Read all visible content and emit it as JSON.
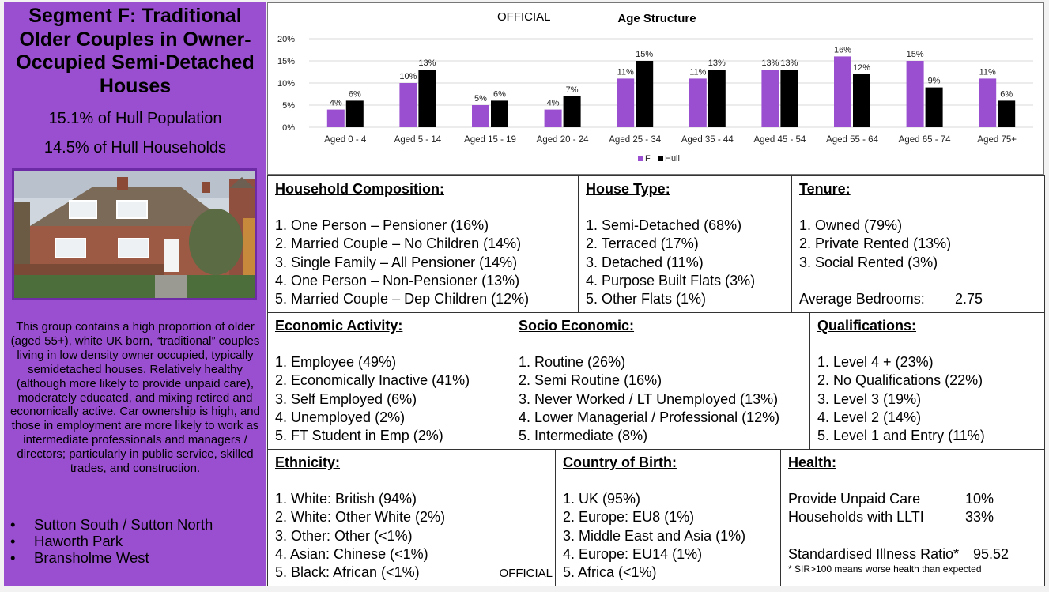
{
  "segment": {
    "title": "Segment F: Traditional Older Couples in Owner-Occupied Semi-Detached Houses",
    "population": "15.1% of Hull Population",
    "households": "14.5% of Hull Households",
    "description": "This group contains a high proportion of older (aged 55+), white UK born, “traditional” couples living in low density owner occupied, typically semidetached houses. Relatively healthy (although more likely to provide unpaid care), moderately educated, and mixing retired and economically active. Car ownership is high, and those in employment are more likely to work as intermediate professionals and managers / directors; particularly in public service, skilled trades, and construction.",
    "areas": [
      "Sutton South / Sutton North",
      "Haworth Park",
      "Bransholme West"
    ]
  },
  "official_label": "OFFICIAL",
  "colors": {
    "segment": "#9a4fd0",
    "hull": "#000000",
    "bar_f": "#9a4fd0",
    "photo_sky": "#cfd6dd"
  },
  "chart_data": {
    "type": "bar",
    "title": "Age Structure",
    "categories": [
      "Aged 0 - 4",
      "Aged 5 - 14",
      "Aged 15 - 19",
      "Aged 20 - 24",
      "Aged 25 - 34",
      "Aged 35 - 44",
      "Aged 45 - 54",
      "Aged 55 - 64",
      "Aged 65 - 74",
      "Aged 75+"
    ],
    "series": [
      {
        "name": "F",
        "values": [
          4,
          10,
          5,
          4,
          11,
          11,
          13,
          16,
          15,
          11
        ],
        "labels": [
          "4%",
          "10%",
          "5%",
          "4%",
          "11%",
          "11%",
          "13%",
          "16%",
          "15%",
          "11%"
        ]
      },
      {
        "name": "Hull",
        "values": [
          6,
          13,
          6,
          7,
          15,
          13,
          13,
          12,
          9,
          6
        ],
        "labels": [
          "6%",
          "13%",
          "6%",
          "7%",
          "15%",
          "13%",
          "13%",
          "12%",
          "9%",
          "6%"
        ]
      }
    ],
    "ylim": [
      0,
      20
    ],
    "yticks": [
      "0%",
      "5%",
      "10%",
      "15%",
      "20%"
    ],
    "grid": true,
    "legend": "bottom"
  },
  "panels": {
    "household": {
      "heading": "Household Composition:",
      "items": [
        "1. One Person – Pensioner (16%)",
        "2. Married Couple – No Children (14%)",
        "3. Single Family – All Pensioner (14%)",
        "4. One Person – Non-Pensioner (13%)",
        "5. Married Couple – Dep Children (12%)"
      ]
    },
    "house_type": {
      "heading": "House Type:",
      "items": [
        "1. Semi-Detached (68%)",
        "2. Terraced (17%)",
        "3. Detached (11%)",
        "4. Purpose Built Flats (3%)",
        "5. Other Flats (1%)"
      ]
    },
    "tenure": {
      "heading": "Tenure:",
      "items": [
        "1. Owned (79%)",
        "2. Private Rented (13%)",
        "3. Social Rented (3%)"
      ],
      "bedrooms_label": "Average Bedrooms:",
      "bedrooms_value": "2.75"
    },
    "economic": {
      "heading": "Economic Activity:",
      "items": [
        "1. Employee (49%)",
        "2. Economically Inactive (41%)",
        "3. Self Employed (6%)",
        "4. Unemployed (2%)",
        "5. FT Student in Emp (2%)"
      ]
    },
    "socio": {
      "heading": "Socio Economic:",
      "items": [
        "1. Routine (26%)",
        "2. Semi Routine (16%)",
        "3. Never Worked / LT Unemployed (13%)",
        "4. Lower Managerial / Professional (12%)",
        "5. Intermediate (8%)"
      ]
    },
    "qualifications": {
      "heading": "Qualifications:",
      "items": [
        "1. Level 4 + (23%)",
        "2. No Qualifications (22%)",
        "3. Level 3 (19%)",
        "4. Level 2 (14%)",
        "5. Level 1 and Entry (11%)"
      ]
    },
    "ethnicity": {
      "heading": "Ethnicity:",
      "items": [
        "1. White: British (94%)",
        "2. White: Other White (2%)",
        "3. Other: Other (<1%)",
        "4. Asian: Chinese (<1%)",
        "5. Black: African (<1%)"
      ]
    },
    "birth": {
      "heading": "Country of Birth:",
      "items": [
        "1. UK (95%)",
        "2. Europe: EU8 (1%)",
        "3. Middle East and Asia (1%)",
        "4. Europe: EU14 (1%)",
        "5. Africa (<1%)"
      ]
    },
    "health": {
      "heading": "Health:",
      "care_label": "Provide Unpaid Care",
      "care_value": "10%",
      "llti_label": "Households with LLTI",
      "llti_value": "33%",
      "sir_label": "Standardised Illness Ratio*",
      "sir_value": "95.52",
      "note": "* SIR>100 means worse health than expected"
    }
  }
}
